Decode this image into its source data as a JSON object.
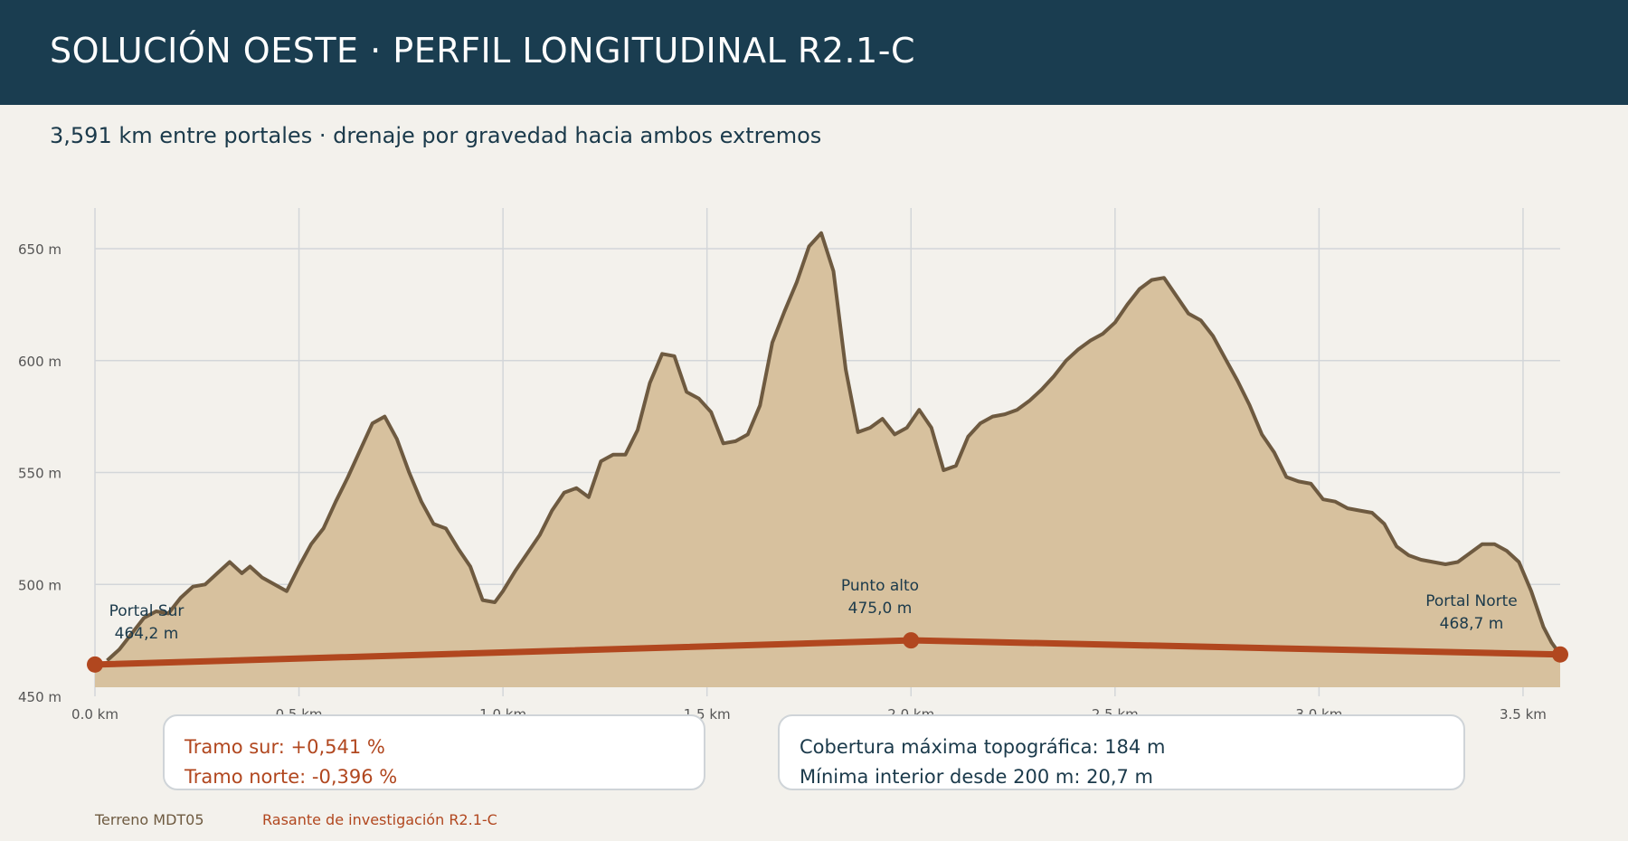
{
  "header": {
    "title": "SOLUCIÓN OESTE · PERFIL LONGITUDINAL R2.1-C",
    "subtitle": "3,591 km entre portales · drenaje por gravedad hacia ambos extremos"
  },
  "chart_data": {
    "type": "area",
    "x_unit": "km",
    "y_unit": "m",
    "xlim": [
      0,
      3.591
    ],
    "ylim": [
      450,
      670
    ],
    "grid": true,
    "x_ticks": [
      {
        "value": 0.0,
        "label": "0.0 km"
      },
      {
        "value": 0.5,
        "label": "0.5 km"
      },
      {
        "value": 1.0,
        "label": "1.0 km"
      },
      {
        "value": 1.5,
        "label": "1.5 km"
      },
      {
        "value": 2.0,
        "label": "2.0 km"
      },
      {
        "value": 2.5,
        "label": "2.5 km"
      },
      {
        "value": 3.0,
        "label": "3.0 km"
      },
      {
        "value": 3.5,
        "label": "3.5 km"
      }
    ],
    "y_ticks": [
      {
        "value": 450,
        "label": "450 m"
      },
      {
        "value": 500,
        "label": "500 m"
      },
      {
        "value": 550,
        "label": "550 m"
      },
      {
        "value": 600,
        "label": "600 m"
      },
      {
        "value": 650,
        "label": "650 m"
      }
    ],
    "series": [
      {
        "name": "Terreno MDT05",
        "kind": "area",
        "fill": "#d7c19e",
        "stroke": "#6e5a40",
        "x": [
          0.03,
          0.06,
          0.09,
          0.12,
          0.15,
          0.18,
          0.21,
          0.24,
          0.27,
          0.3,
          0.33,
          0.36,
          0.38,
          0.41,
          0.44,
          0.47,
          0.5,
          0.53,
          0.56,
          0.59,
          0.62,
          0.65,
          0.68,
          0.71,
          0.74,
          0.77,
          0.8,
          0.83,
          0.86,
          0.89,
          0.92,
          0.95,
          0.98,
          1.0,
          1.03,
          1.06,
          1.09,
          1.12,
          1.15,
          1.18,
          1.21,
          1.24,
          1.27,
          1.3,
          1.33,
          1.36,
          1.39,
          1.42,
          1.45,
          1.48,
          1.51,
          1.54,
          1.57,
          1.6,
          1.63,
          1.66,
          1.69,
          1.72,
          1.75,
          1.78,
          1.81,
          1.84,
          1.87,
          1.9,
          1.93,
          1.96,
          1.99,
          2.02,
          2.05,
          2.08,
          2.11,
          2.14,
          2.17,
          2.2,
          2.23,
          2.26,
          2.29,
          2.32,
          2.35,
          2.38,
          2.41,
          2.44,
          2.47,
          2.5,
          2.53,
          2.56,
          2.59,
          2.62,
          2.65,
          2.68,
          2.71,
          2.74,
          2.77,
          2.8,
          2.83,
          2.86,
          2.89,
          2.92,
          2.95,
          2.98,
          3.01,
          3.04,
          3.07,
          3.1,
          3.13,
          3.16,
          3.19,
          3.22,
          3.25,
          3.28,
          3.31,
          3.34,
          3.37,
          3.4,
          3.43,
          3.46,
          3.49,
          3.52,
          3.55,
          3.57,
          3.591
        ],
        "y": [
          466,
          471,
          478,
          485,
          488,
          487,
          494,
          499,
          500,
          505,
          510,
          505,
          508,
          503,
          500,
          497,
          508,
          518,
          525,
          537,
          548,
          560,
          572,
          575,
          565,
          550,
          537,
          527,
          525,
          516,
          508,
          493,
          492,
          497,
          506,
          514,
          522,
          533,
          541,
          543,
          539,
          555,
          558,
          558,
          569,
          590,
          603,
          602,
          586,
          583,
          577,
          563,
          564,
          567,
          580,
          608,
          622,
          635,
          651,
          657,
          640,
          596,
          568,
          570,
          574,
          567,
          570,
          578,
          570,
          551,
          553,
          566,
          572,
          575,
          576,
          578,
          582,
          587,
          593,
          600,
          605,
          609,
          612,
          617,
          625,
          632,
          636,
          637,
          629,
          621,
          618,
          611,
          601,
          591,
          580,
          567,
          559,
          548,
          546,
          545,
          538,
          537,
          534,
          533,
          532,
          527,
          517,
          513,
          511,
          510,
          509,
          510,
          514,
          518,
          518,
          515,
          510,
          497,
          481,
          474,
          468.7
        ]
      },
      {
        "name": "Rasante de investigación R2.1-C",
        "kind": "line",
        "color": "#b1471f",
        "x": [
          0,
          2.0,
          3.591
        ],
        "y": [
          464.2,
          475.0,
          468.7
        ],
        "grades": [
          {
            "label": "Tramo sur",
            "value": "+0,541 %"
          },
          {
            "label": "Tramo norte",
            "value": "-0,396 %"
          }
        ]
      }
    ],
    "annotations": [
      {
        "x": 0,
        "y": 464.2,
        "label": "Portal Sur",
        "value": "464,2 m",
        "anchor": "right"
      },
      {
        "x": 2.0,
        "y": 475.0,
        "label": "Punto alto",
        "value": "475,0 m",
        "anchor": "above"
      },
      {
        "x": 3.591,
        "y": 468.7,
        "label": "Portal Norte",
        "value": "468,7 m",
        "anchor": "left"
      }
    ]
  },
  "notes": {
    "grade_south": "Tramo sur: +0,541 %",
    "grade_north": "Tramo norte: -0,396 %",
    "cover_max": "Cobertura máxima topográfica: 184 m",
    "cover_min": "Mínima interior desde 200 m: 20,7 m"
  },
  "legend": {
    "terrain": "Terreno MDT05",
    "grade": "Rasante de investigación R2.1-C"
  }
}
